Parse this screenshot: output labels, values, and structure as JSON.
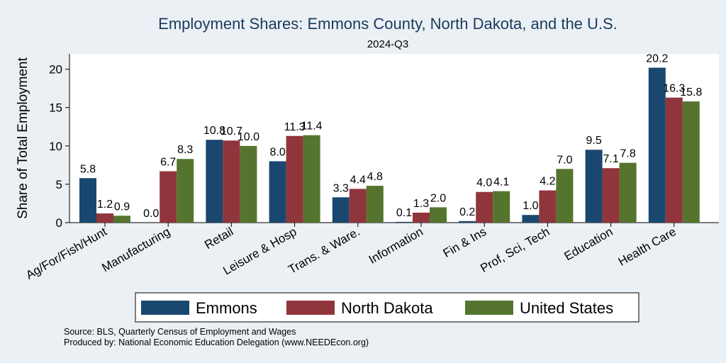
{
  "chart_data": {
    "type": "bar",
    "title": "Employment Shares: Emmons County, North Dakota, and the U.S.",
    "subtitle": "2024-Q3",
    "ylabel": "Share of Total Employment",
    "xlabel": "",
    "ylim": [
      0,
      22
    ],
    "yticks": [
      0,
      5,
      10,
      15,
      20
    ],
    "categories": [
      "Ag/For/Fish/Hunt",
      "Manufacturing",
      "Retail",
      "Leisure & Hosp",
      "Trans. & Ware.",
      "Information",
      "Fin & Ins",
      "Prof, Sci, Tech",
      "Education",
      "Health Care"
    ],
    "series": [
      {
        "name": "Emmons",
        "color": "#1a476f",
        "values": [
          5.8,
          0.0,
          10.8,
          8.0,
          3.3,
          0.1,
          0.2,
          1.0,
          9.5,
          20.2
        ],
        "labels": [
          "5.8",
          "0.0",
          "10.8",
          "8.0",
          "3.3",
          "0.1",
          "0.2",
          "1.0",
          "9.5",
          "20.2"
        ]
      },
      {
        "name": "North Dakota",
        "color": "#90353b",
        "values": [
          1.2,
          6.7,
          10.7,
          11.3,
          4.4,
          1.3,
          4.0,
          4.2,
          7.1,
          16.3
        ],
        "labels": [
          "1.2",
          "6.7",
          "10.7",
          "11.3",
          "4.4",
          "1.3",
          "4.0",
          "4.2",
          "7.1",
          "16.3"
        ]
      },
      {
        "name": "United States",
        "color": "#55752f",
        "values": [
          0.9,
          8.3,
          10.0,
          11.4,
          4.8,
          2.0,
          4.1,
          7.0,
          7.8,
          15.8
        ],
        "labels": [
          "0.9",
          "8.3",
          "10.0",
          "11.4",
          "4.8",
          "2.0",
          "4.1",
          "7.0",
          "7.8",
          "15.8"
        ]
      }
    ],
    "grid": false,
    "legend_position": "bottom"
  },
  "notes": {
    "source": "Source: BLS, Quarterly Census of Employment and Wages",
    "produced_by": "Produced by: National Economic Education Delegation (www.NEEDEcon.org)"
  }
}
